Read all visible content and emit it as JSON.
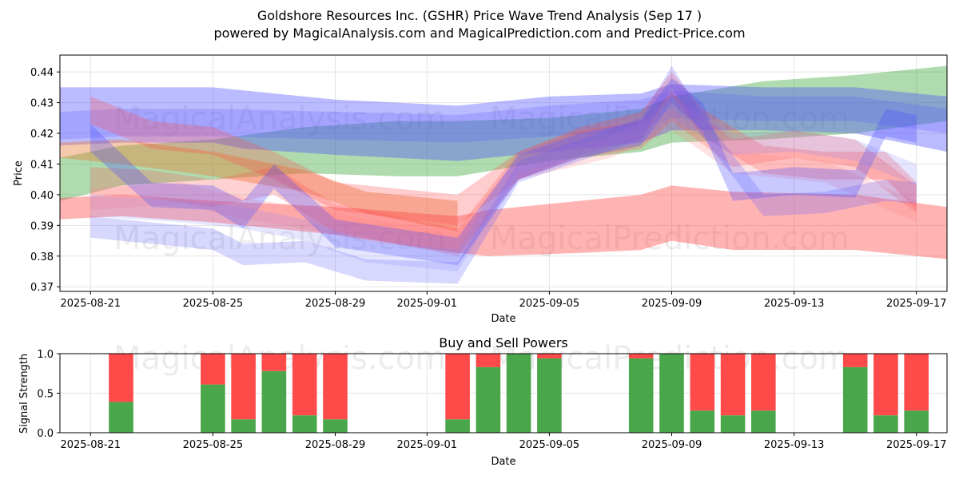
{
  "chart_data": [
    {
      "type": "area",
      "title": "Goldshore Resources Inc. (GSHR) Price Wave Trend Analysis (Sep 17 )",
      "subtitle": "powered by MagicalAnalysis.com and MagicalPrediction.com and Predict-Price.com",
      "xlabel": "Date",
      "ylabel": "Price",
      "ylim": [
        0.3685,
        0.4455
      ],
      "xlim": [
        "2025-08-20",
        "2025-09-18"
      ],
      "x_tick_labels": [
        "2025-08-21",
        "2025-08-25",
        "2025-08-29",
        "2025-09-01",
        "2025-09-05",
        "2025-09-09",
        "2025-09-13",
        "2025-09-17"
      ],
      "y_tick_labels": [
        "0.37",
        "0.38",
        "0.39",
        "0.40",
        "0.41",
        "0.42",
        "0.43",
        "0.44"
      ],
      "grid": true,
      "watermarks": [
        "MagicalAnalysis.com",
        "MagicalPrediction.com"
      ],
      "series": [
        {
          "name": "green-band",
          "color": "#2ca02c",
          "opacity": 0.38,
          "dates": [
            "2025-08-20",
            "2025-08-22",
            "2025-08-25",
            "2025-08-28",
            "2025-08-31",
            "2025-09-02",
            "2025-09-05",
            "2025-09-08",
            "2025-09-09",
            "2025-09-12",
            "2025-09-15",
            "2025-09-18"
          ],
          "upper": [
            0.412,
            0.416,
            0.418,
            0.422,
            0.424,
            0.424,
            0.425,
            0.428,
            0.432,
            0.437,
            0.439,
            0.442
          ],
          "lower": [
            0.398,
            0.403,
            0.405,
            0.407,
            0.406,
            0.406,
            0.411,
            0.414,
            0.417,
            0.418,
            0.42,
            0.424
          ]
        },
        {
          "name": "blue-band-1",
          "color": "#4d4dff",
          "opacity": 0.38,
          "dates": [
            "2025-08-20",
            "2025-08-22",
            "2025-08-25",
            "2025-08-26",
            "2025-08-29",
            "2025-09-02",
            "2025-09-05",
            "2025-09-08",
            "2025-09-09",
            "2025-09-12",
            "2025-09-15",
            "2025-09-18"
          ],
          "upper": [
            0.435,
            0.435,
            0.435,
            0.434,
            0.431,
            0.429,
            0.432,
            0.433,
            0.436,
            0.435,
            0.435,
            0.432
          ],
          "lower": [
            0.416,
            0.417,
            0.417,
            0.415,
            0.413,
            0.411,
            0.414,
            0.417,
            0.421,
            0.421,
            0.42,
            0.414
          ]
        },
        {
          "name": "blue-band-2",
          "color": "#4d4dff",
          "opacity": 0.2,
          "dates": [
            "2025-08-20",
            "2025-08-22",
            "2025-08-25",
            "2025-08-29",
            "2025-09-02",
            "2025-09-05",
            "2025-09-08",
            "2025-09-09",
            "2025-09-12",
            "2025-09-15",
            "2025-09-18"
          ],
          "upper": [
            0.427,
            0.428,
            0.428,
            0.427,
            0.426,
            0.429,
            0.431,
            0.434,
            0.432,
            0.432,
            0.428
          ],
          "lower": [
            0.418,
            0.419,
            0.419,
            0.418,
            0.417,
            0.419,
            0.421,
            0.425,
            0.424,
            0.424,
            0.42
          ]
        },
        {
          "name": "orange-band",
          "color": "#e8803a",
          "opacity": 0.42,
          "dates": [
            "2025-08-20",
            "2025-08-22",
            "2025-08-25",
            "2025-08-28",
            "2025-08-30",
            "2025-09-02"
          ],
          "upper": [
            0.417,
            0.418,
            0.414,
            0.408,
            0.401,
            0.398
          ],
          "lower": [
            0.412,
            0.41,
            0.406,
            0.401,
            0.394,
            0.388
          ]
        },
        {
          "name": "red-main-band",
          "color": "#ff4d4d",
          "opacity": 0.42,
          "dates": [
            "2025-08-20",
            "2025-08-22",
            "2025-08-25",
            "2025-08-29",
            "2025-09-02",
            "2025-09-03",
            "2025-09-06",
            "2025-09-08",
            "2025-09-09",
            "2025-09-11",
            "2025-09-15",
            "2025-09-18"
          ],
          "upper": [
            0.399,
            0.4,
            0.398,
            0.396,
            0.393,
            0.395,
            0.398,
            0.4,
            0.403,
            0.401,
            0.4,
            0.396
          ],
          "lower": [
            0.392,
            0.393,
            0.391,
            0.387,
            0.381,
            0.38,
            0.381,
            0.382,
            0.385,
            0.382,
            0.382,
            0.379
          ]
        },
        {
          "name": "red-swing-1",
          "color": "#ff4d4d",
          "opacity": 0.28,
          "dates": [
            "2025-08-21",
            "2025-08-23",
            "2025-08-25",
            "2025-08-27",
            "2025-08-29",
            "2025-09-02",
            "2025-09-04",
            "2025-09-06",
            "2025-09-08",
            "2025-09-09",
            "2025-09-10",
            "2025-09-12",
            "2025-09-14",
            "2025-09-16",
            "2025-09-17"
          ],
          "upper": [
            0.432,
            0.424,
            0.422,
            0.414,
            0.404,
            0.4,
            0.414,
            0.422,
            0.427,
            0.44,
            0.428,
            0.416,
            0.414,
            0.414,
            0.404
          ],
          "lower": [
            0.423,
            0.415,
            0.413,
            0.405,
            0.395,
            0.39,
            0.405,
            0.413,
            0.418,
            0.432,
            0.419,
            0.407,
            0.405,
            0.405,
            0.395
          ]
        },
        {
          "name": "red-swing-2",
          "color": "#ff4d4d",
          "opacity": 0.25,
          "dates": [
            "2025-08-21",
            "2025-08-23",
            "2025-08-25",
            "2025-08-27",
            "2025-08-29",
            "2025-09-02",
            "2025-09-04",
            "2025-09-06",
            "2025-09-08",
            "2025-09-09",
            "2025-09-11",
            "2025-09-13",
            "2025-09-15",
            "2025-09-17"
          ],
          "upper": [
            0.409,
            0.408,
            0.405,
            0.409,
            0.397,
            0.389,
            0.414,
            0.421,
            0.424,
            0.433,
            0.418,
            0.421,
            0.418,
            0.403
          ],
          "lower": [
            0.4,
            0.399,
            0.396,
            0.4,
            0.388,
            0.38,
            0.405,
            0.412,
            0.415,
            0.424,
            0.409,
            0.412,
            0.409,
            0.394
          ]
        },
        {
          "name": "red-swing-3",
          "color": "#ff8080",
          "opacity": 0.22,
          "dates": [
            "2025-08-21",
            "2025-08-24",
            "2025-08-26",
            "2025-08-28",
            "2025-08-30",
            "2025-09-02",
            "2025-09-04",
            "2025-09-07",
            "2025-09-09",
            "2025-09-11",
            "2025-09-14",
            "2025-09-17"
          ],
          "upper": [
            0.402,
            0.404,
            0.399,
            0.396,
            0.392,
            0.388,
            0.412,
            0.419,
            0.428,
            0.414,
            0.411,
            0.398
          ],
          "lower": [
            0.395,
            0.397,
            0.392,
            0.389,
            0.385,
            0.381,
            0.405,
            0.412,
            0.421,
            0.407,
            0.404,
            0.391
          ]
        },
        {
          "name": "blue-swing-1",
          "color": "#4d4dff",
          "opacity": 0.3,
          "dates": [
            "2025-08-21",
            "2025-08-23",
            "2025-08-25",
            "2025-08-26",
            "2025-08-27",
            "2025-08-29",
            "2025-09-02",
            "2025-09-04",
            "2025-09-06",
            "2025-09-08",
            "2025-09-09",
            "2025-09-10",
            "2025-09-11",
            "2025-09-13",
            "2025-09-15",
            "2025-09-16",
            "2025-09-17"
          ],
          "upper": [
            0.423,
            0.404,
            0.403,
            0.398,
            0.41,
            0.392,
            0.386,
            0.413,
            0.42,
            0.424,
            0.438,
            0.43,
            0.407,
            0.409,
            0.408,
            0.428,
            0.426
          ],
          "lower": [
            0.414,
            0.396,
            0.395,
            0.389,
            0.402,
            0.383,
            0.377,
            0.405,
            0.412,
            0.416,
            0.43,
            0.421,
            0.398,
            0.4,
            0.399,
            0.419,
            0.417
          ]
        },
        {
          "name": "blue-swing-2",
          "color": "#4d4dff",
          "opacity": 0.22,
          "dates": [
            "2025-08-21",
            "2025-08-23",
            "2025-08-25",
            "2025-08-26",
            "2025-08-28",
            "2025-08-30",
            "2025-09-02",
            "2025-09-04",
            "2025-09-06",
            "2025-09-08",
            "2025-09-09",
            "2025-09-10",
            "2025-09-12",
            "2025-09-14",
            "2025-09-16",
            "2025-09-17"
          ],
          "upper": [
            0.393,
            0.391,
            0.389,
            0.384,
            0.385,
            0.379,
            0.378,
            0.411,
            0.418,
            0.425,
            0.442,
            0.426,
            0.4,
            0.401,
            0.405,
            0.404
          ],
          "lower": [
            0.386,
            0.384,
            0.382,
            0.377,
            0.378,
            0.372,
            0.371,
            0.404,
            0.411,
            0.418,
            0.435,
            0.419,
            0.393,
            0.394,
            0.398,
            0.397
          ]
        },
        {
          "name": "blue-swing-3",
          "color": "#8080ff",
          "opacity": 0.2,
          "dates": [
            "2025-08-21",
            "2025-08-24",
            "2025-08-26",
            "2025-08-28",
            "2025-08-30",
            "2025-09-02",
            "2025-09-04",
            "2025-09-06",
            "2025-09-08",
            "2025-09-09",
            "2025-09-11",
            "2025-09-13",
            "2025-09-15",
            "2025-09-17"
          ],
          "upper": [
            0.4,
            0.398,
            0.396,
            0.392,
            0.385,
            0.382,
            0.414,
            0.42,
            0.424,
            0.432,
            0.42,
            0.421,
            0.418,
            0.41
          ],
          "lower": [
            0.393,
            0.391,
            0.389,
            0.385,
            0.378,
            0.375,
            0.407,
            0.413,
            0.417,
            0.425,
            0.413,
            0.414,
            0.411,
            0.403
          ]
        }
      ]
    },
    {
      "type": "bar",
      "title": "Buy and Sell Powers",
      "xlabel": "Date",
      "ylabel": "Signal Strength",
      "ylim": [
        0,
        1.0
      ],
      "xlim": [
        "2025-08-20",
        "2025-09-18"
      ],
      "x_tick_labels": [
        "2025-08-21",
        "2025-08-25",
        "2025-08-29",
        "2025-09-01",
        "2025-09-05",
        "2025-09-09",
        "2025-09-13",
        "2025-09-17"
      ],
      "y_tick_labels": [
        "0.0",
        "0.5",
        "1.0"
      ],
      "grid": true,
      "colors": {
        "buy": "#4aa64a",
        "sell": "#ff4a4a"
      },
      "watermarks": [
        "MagicalAnalysis.com",
        "MagicalPrediction.com"
      ],
      "dates": [
        "2025-08-22",
        "2025-08-25",
        "2025-08-26",
        "2025-08-27",
        "2025-08-28",
        "2025-08-29",
        "2025-09-02",
        "2025-09-03",
        "2025-09-04",
        "2025-09-05",
        "2025-09-08",
        "2025-09-09",
        "2025-09-10",
        "2025-09-11",
        "2025-09-12",
        "2025-09-15",
        "2025-09-16",
        "2025-09-17"
      ],
      "series": [
        {
          "name": "buy",
          "values": [
            0.39,
            0.61,
            0.17,
            0.78,
            0.22,
            0.17,
            0.17,
            0.83,
            1.0,
            0.94,
            0.94,
            1.0,
            0.28,
            0.22,
            0.28,
            0.83,
            0.22,
            0.28
          ]
        },
        {
          "name": "sell",
          "values": [
            0.61,
            0.39,
            0.83,
            0.22,
            0.78,
            0.83,
            0.83,
            0.17,
            0.0,
            0.06,
            0.06,
            0.0,
            0.72,
            0.78,
            0.72,
            0.17,
            0.78,
            0.72
          ]
        }
      ]
    }
  ]
}
